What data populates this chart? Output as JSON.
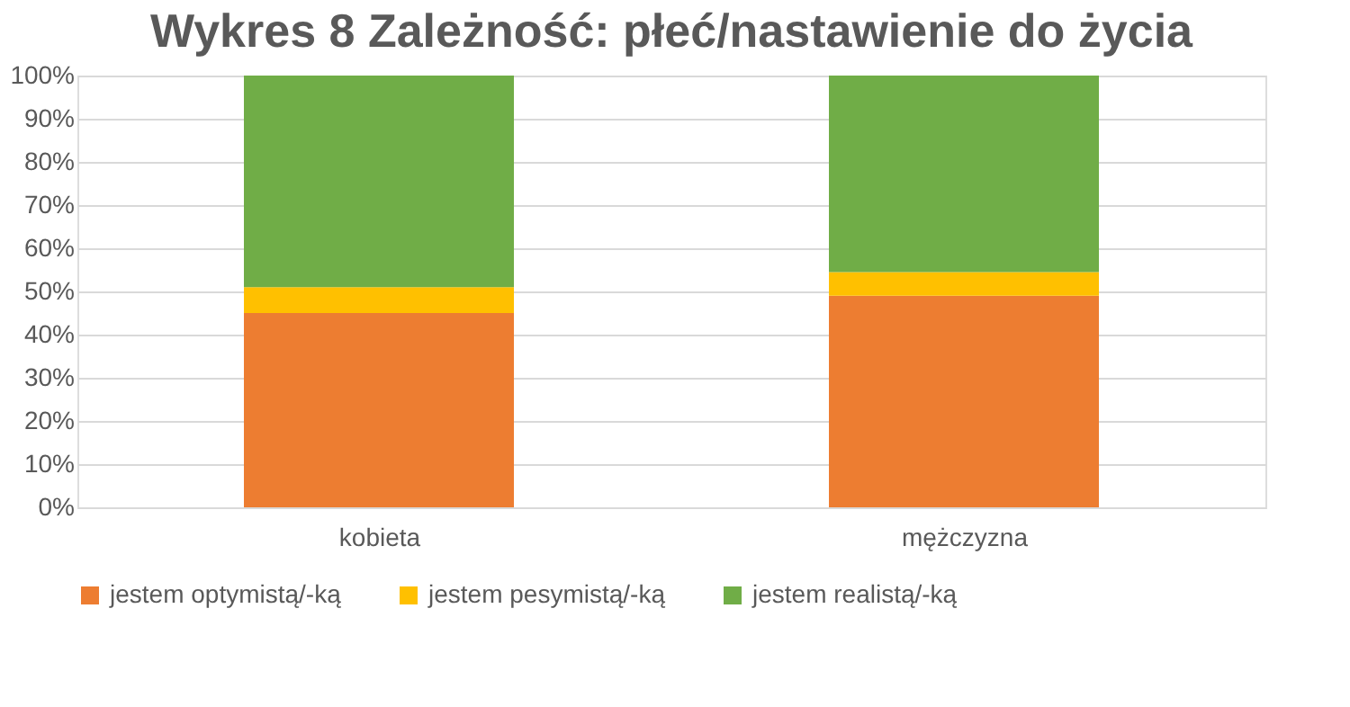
{
  "chart_data": {
    "type": "bar",
    "stacked": true,
    "title": "Wykres 8 Zależność: płeć/nastawienie do życia",
    "categories": [
      "kobieta",
      "mężczyzna"
    ],
    "series": [
      {
        "name": "jestem optymistą/-ką",
        "color": "#ed7d31",
        "values": [
          45,
          49
        ]
      },
      {
        "name": "jestem pesymistą/-ką",
        "color": "#ffc000",
        "values": [
          6,
          5.5
        ]
      },
      {
        "name": "jestem realistą/-ką",
        "color": "#70ad47",
        "values": [
          49,
          45.5
        ]
      }
    ],
    "ylim": [
      0,
      100
    ],
    "yticks": [
      {
        "value": 0,
        "label": "0%"
      },
      {
        "value": 10,
        "label": "10%"
      },
      {
        "value": 20,
        "label": "20%"
      },
      {
        "value": 30,
        "label": "30%"
      },
      {
        "value": 40,
        "label": "40%"
      },
      {
        "value": 50,
        "label": "50%"
      },
      {
        "value": 60,
        "label": "60%"
      },
      {
        "value": 70,
        "label": "70%"
      },
      {
        "value": 80,
        "label": "80%"
      },
      {
        "value": 90,
        "label": "90%"
      },
      {
        "value": 100,
        "label": "100%"
      }
    ],
    "grid": "y",
    "legend": "bottom"
  }
}
